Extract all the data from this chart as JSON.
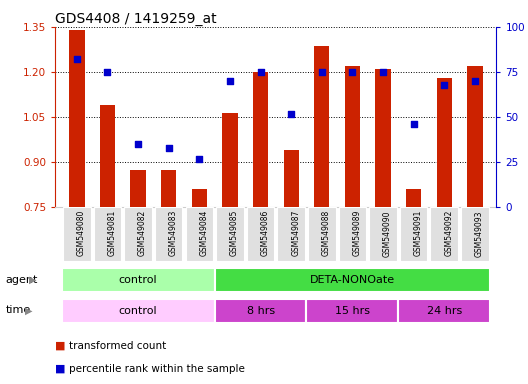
{
  "title": "GDS4408 / 1419259_at",
  "samples": [
    "GSM549080",
    "GSM549081",
    "GSM549082",
    "GSM549083",
    "GSM549084",
    "GSM549085",
    "GSM549086",
    "GSM549087",
    "GSM549088",
    "GSM549089",
    "GSM549090",
    "GSM549091",
    "GSM549092",
    "GSM549093"
  ],
  "transformed_count": [
    1.34,
    1.09,
    0.875,
    0.875,
    0.81,
    1.065,
    1.2,
    0.94,
    1.285,
    1.22,
    1.21,
    0.81,
    1.18,
    1.22
  ],
  "percentile_rank": [
    82,
    75,
    35,
    33,
    27,
    70,
    75,
    52,
    75,
    75,
    75,
    46,
    68,
    70
  ],
  "ylim_left": [
    0.75,
    1.35
  ],
  "ylim_right": [
    0,
    100
  ],
  "yticks_left": [
    0.75,
    0.9,
    1.05,
    1.2,
    1.35
  ],
  "yticks_right": [
    0,
    25,
    50,
    75,
    100
  ],
  "bar_color": "#cc2200",
  "dot_color": "#0000cc",
  "bar_width": 0.5,
  "agent_labels": [
    {
      "text": "control",
      "start": 0,
      "end": 4,
      "color": "#aaffaa"
    },
    {
      "text": "DETA-NONOate",
      "start": 5,
      "end": 13,
      "color": "#44dd44"
    }
  ],
  "time_labels": [
    {
      "text": "control",
      "start": 0,
      "end": 4,
      "color": "#ffccff"
    },
    {
      "text": "8 hrs",
      "start": 5,
      "end": 7,
      "color": "#cc44cc"
    },
    {
      "text": "15 hrs",
      "start": 8,
      "end": 10,
      "color": "#cc44cc"
    },
    {
      "text": "24 hrs",
      "start": 11,
      "end": 13,
      "color": "#cc44cc"
    }
  ],
  "legend_items": [
    {
      "label": "transformed count",
      "color": "#cc2200"
    },
    {
      "label": "percentile rank within the sample",
      "color": "#0000cc"
    }
  ],
  "left_axis_color": "#cc2200",
  "right_axis_color": "#0000cc",
  "bg_color": "#ffffff"
}
